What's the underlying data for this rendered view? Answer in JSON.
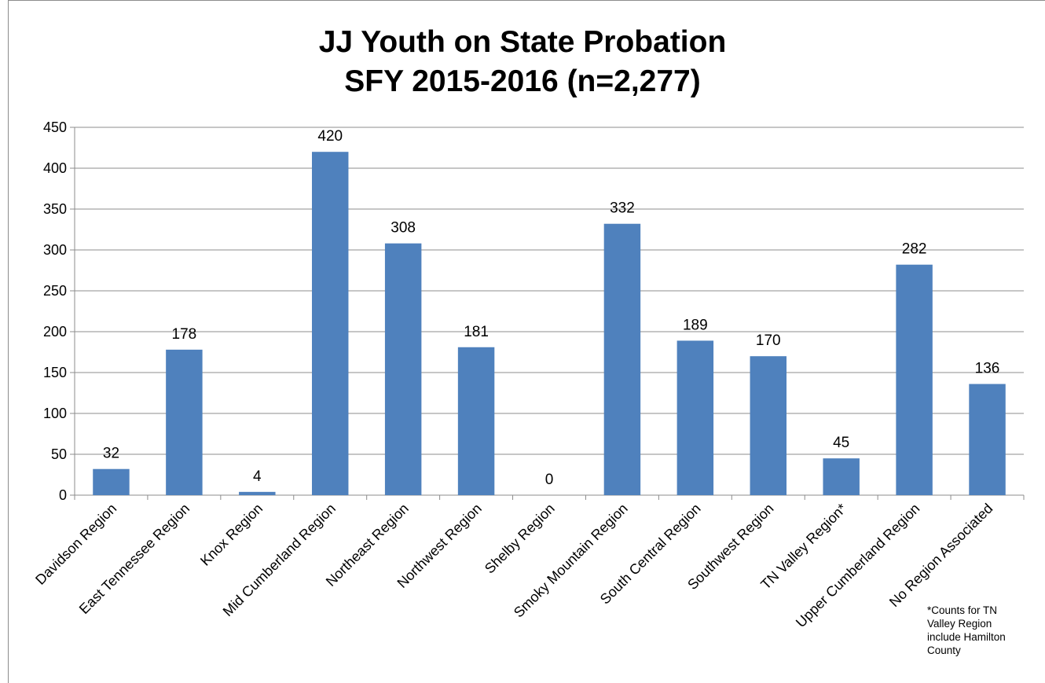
{
  "chart_data": {
    "type": "bar",
    "title": "JJ Youth on State Probation",
    "subtitle": "SFY 2015-2016 (n=2,277)",
    "categories": [
      "Davidson Region",
      "East Tennessee Region",
      "Knox Region",
      "Mid Cumberland Region",
      "Northeast Region",
      "Northwest Region",
      "Shelby Region",
      "Smoky Mountain Region",
      "South Central Region",
      "Southwest Region",
      "TN Valley Region*",
      "Upper Cumberland Region",
      "No Region Associated"
    ],
    "values": [
      32,
      178,
      4,
      420,
      308,
      181,
      0,
      332,
      189,
      170,
      45,
      282,
      136
    ],
    "ylim": [
      0,
      450
    ],
    "yticks": [
      0,
      50,
      100,
      150,
      200,
      250,
      300,
      350,
      400,
      450
    ],
    "grid": true,
    "legend": "none",
    "bar_color": "#4F81BD",
    "footnote": "*Counts for TN Valley Region include Hamilton County"
  }
}
